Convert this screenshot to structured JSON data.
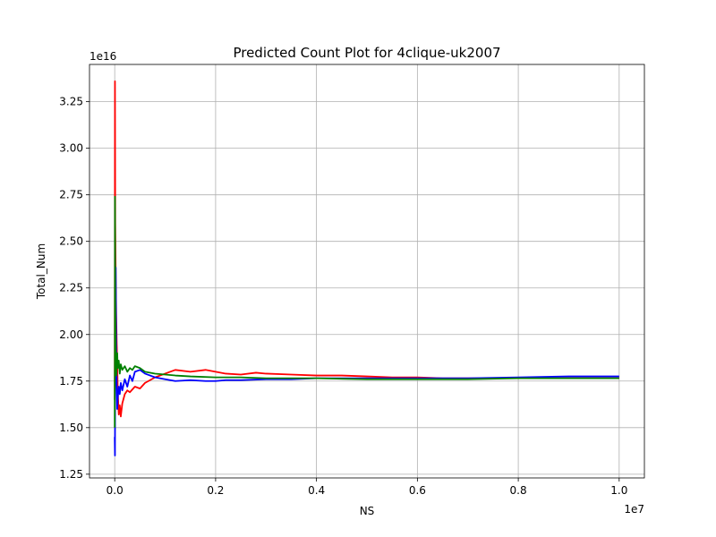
{
  "chart_data": {
    "type": "line",
    "title": "Predicted Count Plot for 4clique-uk2007",
    "xlabel": "NS",
    "ylabel": "Total_Num",
    "x_offset_label": "1e7",
    "y_offset_label": "1e16",
    "x_scale": 10000000,
    "y_scale": 10000000000000000,
    "xlim": [
      -0.05,
      1.05
    ],
    "ylim": [
      1.23,
      3.45
    ],
    "xticks": [
      0.0,
      0.2,
      0.4,
      0.6,
      0.8,
      1.0
    ],
    "xtick_labels": [
      "0.0",
      "0.2",
      "0.4",
      "0.6",
      "0.8",
      "1.0"
    ],
    "yticks": [
      1.25,
      1.5,
      1.75,
      2.0,
      2.25,
      2.5,
      2.75,
      3.0,
      3.25
    ],
    "ytick_labels": [
      "1.25",
      "1.50",
      "1.75",
      "2.00",
      "2.25",
      "2.50",
      "2.75",
      "3.00",
      "3.25"
    ],
    "grid": true,
    "series": [
      {
        "color": "#ff0000",
        "x": [
          0.0,
          0.0005,
          0.001,
          0.002,
          0.003,
          0.004,
          0.005,
          0.006,
          0.008,
          0.01,
          0.012,
          0.015,
          0.02,
          0.025,
          0.03,
          0.04,
          0.05,
          0.06,
          0.08,
          0.1,
          0.12,
          0.15,
          0.18,
          0.2,
          0.22,
          0.25,
          0.28,
          0.3,
          0.35,
          0.4,
          0.45,
          0.5,
          0.55,
          0.6,
          0.65,
          0.7,
          0.8,
          0.9,
          1.0
        ],
        "y": [
          1.65,
          3.36,
          2.6,
          2.3,
          2.1,
          1.95,
          1.85,
          1.7,
          1.57,
          1.62,
          1.56,
          1.63,
          1.68,
          1.7,
          1.69,
          1.72,
          1.71,
          1.74,
          1.77,
          1.79,
          1.81,
          1.8,
          1.81,
          1.8,
          1.79,
          1.785,
          1.795,
          1.79,
          1.785,
          1.78,
          1.78,
          1.775,
          1.77,
          1.77,
          1.765,
          1.765,
          1.765,
          1.765,
          1.765
        ]
      },
      {
        "color": "#0000ff",
        "x": [
          0.0,
          0.0005,
          0.001,
          0.002,
          0.003,
          0.004,
          0.005,
          0.006,
          0.008,
          0.01,
          0.012,
          0.015,
          0.02,
          0.025,
          0.03,
          0.035,
          0.04,
          0.05,
          0.06,
          0.08,
          0.1,
          0.12,
          0.15,
          0.18,
          0.2,
          0.22,
          0.25,
          0.3,
          0.35,
          0.4,
          0.5,
          0.6,
          0.7,
          0.8,
          0.9,
          1.0
        ],
        "y": [
          1.45,
          1.35,
          2.1,
          2.36,
          1.9,
          1.72,
          1.6,
          1.66,
          1.72,
          1.68,
          1.74,
          1.7,
          1.76,
          1.72,
          1.78,
          1.75,
          1.8,
          1.81,
          1.79,
          1.77,
          1.76,
          1.75,
          1.755,
          1.75,
          1.75,
          1.755,
          1.755,
          1.76,
          1.76,
          1.765,
          1.765,
          1.765,
          1.765,
          1.77,
          1.775,
          1.775
        ]
      },
      {
        "color": "#008000",
        "x": [
          0.0,
          0.0005,
          0.001,
          0.002,
          0.003,
          0.004,
          0.005,
          0.006,
          0.008,
          0.01,
          0.012,
          0.015,
          0.02,
          0.025,
          0.03,
          0.035,
          0.04,
          0.05,
          0.06,
          0.08,
          0.1,
          0.12,
          0.15,
          0.2,
          0.25,
          0.3,
          0.35,
          0.4,
          0.5,
          0.6,
          0.7,
          0.8,
          0.9,
          1.0
        ],
        "y": [
          1.5,
          2.74,
          2.2,
          1.9,
          1.78,
          1.85,
          1.9,
          1.82,
          1.86,
          1.79,
          1.84,
          1.81,
          1.83,
          1.8,
          1.82,
          1.81,
          1.83,
          1.82,
          1.8,
          1.79,
          1.785,
          1.78,
          1.775,
          1.77,
          1.77,
          1.765,
          1.765,
          1.765,
          1.76,
          1.76,
          1.76,
          1.765,
          1.765,
          1.765
        ]
      }
    ]
  }
}
